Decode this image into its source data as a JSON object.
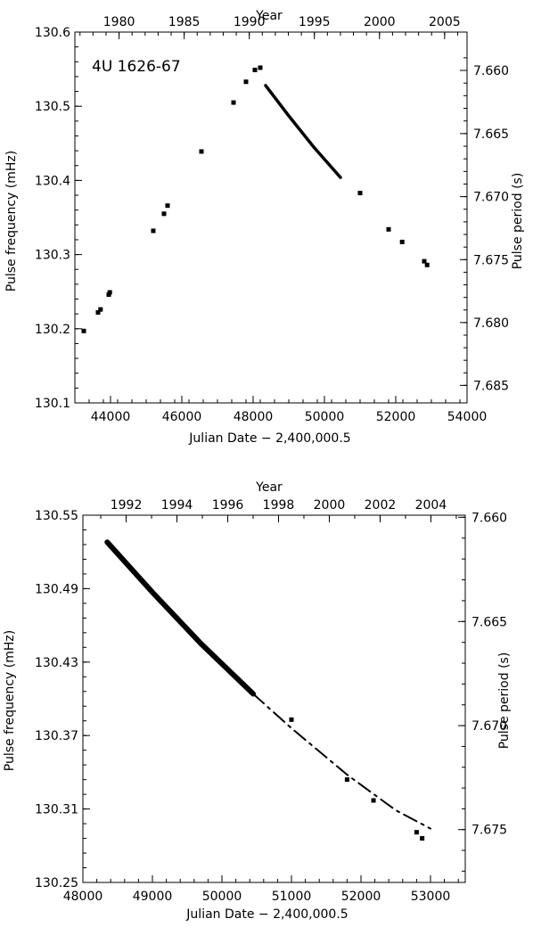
{
  "chart_data": [
    {
      "type": "scatter",
      "annotation": "4U 1626-67",
      "xlabel": "Julian Date − 2,400,000.5",
      "ylabel": "Pulse frequency (mHz)",
      "ylabel_right": "Pulse period (s)",
      "xlabel_top": "Year",
      "xlim": [
        43000,
        54000
      ],
      "ylim": [
        130.1,
        130.6
      ],
      "x_ticks": [
        44000,
        46000,
        48000,
        50000,
        52000,
        54000
      ],
      "y_ticks": [
        130.1,
        130.2,
        130.3,
        130.4,
        130.5,
        130.6
      ],
      "y_tick_labels": [
        "130.1",
        "130.2",
        "130.3",
        "130.4",
        "130.5",
        "130.6"
      ],
      "top_ticks": [
        1980,
        1985,
        1990,
        1995,
        2000,
        2005
      ],
      "right_ticks": [
        "7.660",
        "7.665",
        "7.670",
        "7.675",
        "7.680",
        "7.685"
      ],
      "right_tick_values": [
        7.66,
        7.665,
        7.67,
        7.675,
        7.68,
        7.685
      ],
      "series": [
        {
          "kind": "points",
          "x": [
            43250,
            43650,
            43720,
            43950,
            43980,
            45200,
            45500,
            45600,
            46550,
            47450,
            47800,
            48050,
            48200,
            51000,
            51800,
            52180,
            52800,
            52880
          ],
          "y": [
            130.197,
            130.222,
            130.226,
            130.246,
            130.249,
            130.332,
            130.355,
            130.366,
            130.439,
            130.505,
            130.533,
            130.549,
            130.552,
            130.383,
            130.334,
            130.317,
            130.291,
            130.286
          ]
        },
        {
          "kind": "curve",
          "x": [
            48350,
            49000,
            49700,
            50450
          ],
          "y": [
            130.528,
            130.487,
            130.445,
            130.404
          ]
        }
      ]
    },
    {
      "type": "scatter",
      "xlabel": "Julian Date − 2,400,000.5",
      "ylabel": "Pulse frequency (mHz)",
      "ylabel_right": "Pulse period (s)",
      "xlabel_top": "Year",
      "xlim": [
        48000,
        53500
      ],
      "ylim": [
        130.25,
        130.55
      ],
      "x_ticks": [
        48000,
        49000,
        50000,
        51000,
        52000,
        53000
      ],
      "y_ticks": [
        130.25,
        130.31,
        130.37,
        130.43,
        130.49,
        130.55
      ],
      "y_tick_labels": [
        "130.25",
        "130.31",
        "130.37",
        "130.43",
        "130.49",
        "130.55"
      ],
      "top_ticks": [
        1992,
        1994,
        1996,
        1998,
        2000,
        2002,
        2004
      ],
      "right_ticks": [
        "7.660",
        "7.665",
        "7.670",
        "7.675"
      ],
      "right_tick_values": [
        7.66,
        7.665,
        7.67,
        7.675
      ],
      "series": [
        {
          "kind": "points",
          "x": [
            51000,
            51800,
            52180,
            52800,
            52880
          ],
          "y": [
            130.383,
            130.334,
            130.317,
            130.291,
            130.286
          ]
        },
        {
          "kind": "curve",
          "x": [
            48350,
            49000,
            49700,
            50450
          ],
          "y": [
            130.528,
            130.487,
            130.445,
            130.404
          ]
        },
        {
          "kind": "dashed",
          "x": [
            50450,
            51000,
            51800,
            52500,
            53000
          ],
          "y": [
            130.404,
            130.376,
            130.338,
            130.309,
            130.294
          ]
        }
      ]
    }
  ]
}
